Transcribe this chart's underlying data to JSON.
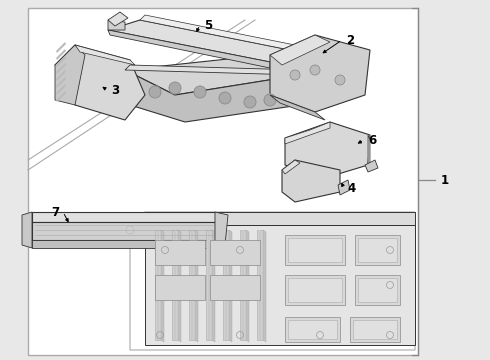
{
  "bg_color": "#e8e8e8",
  "white": "#ffffff",
  "part_fill": "#e8e8e8",
  "part_fill2": "#d4d4d4",
  "part_edge": "#333333",
  "part_edge2": "#555555",
  "line_color": "#444444",
  "gray_line": "#888888",
  "label_fontsize": 8.5,
  "figsize": [
    4.9,
    3.6
  ],
  "dpi": 100,
  "box_color": "#cccccc"
}
